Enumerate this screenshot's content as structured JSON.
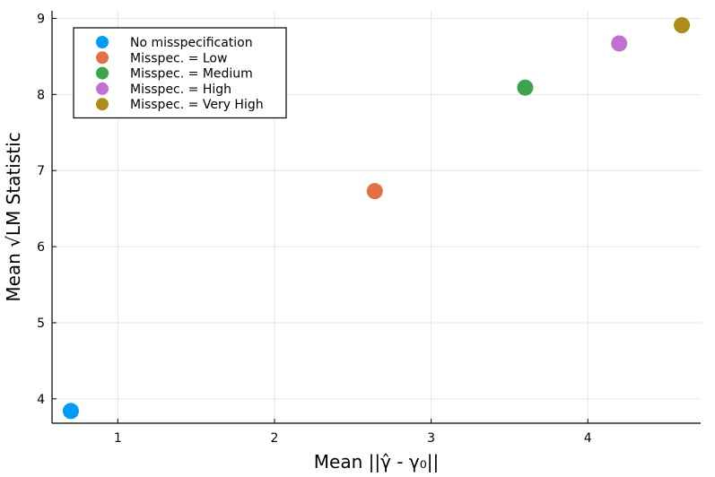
{
  "chart_data": {
    "type": "scatter",
    "title": "",
    "xlabel": "Mean ||γ̂ - γ₀||",
    "ylabel": "Mean √LM Statistic",
    "xlim": [
      0.58,
      4.72
    ],
    "ylim": [
      3.68,
      9.1
    ],
    "xticks": [
      1,
      2,
      3,
      4
    ],
    "yticks": [
      4,
      5,
      6,
      7,
      8,
      9
    ],
    "grid": true,
    "legend_position": "top-left",
    "series": [
      {
        "name": "No misspecification",
        "color": "#009af9",
        "x": [
          0.7
        ],
        "y": [
          3.84
        ]
      },
      {
        "name": "Misspec. = Low",
        "color": "#e26f46",
        "x": [
          2.64
        ],
        "y": [
          6.73
        ]
      },
      {
        "name": "Misspec. = Medium",
        "color": "#3da44d",
        "x": [
          3.6
        ],
        "y": [
          8.09
        ]
      },
      {
        "name": "Misspec. = High",
        "color": "#c271d2",
        "x": [
          4.2
        ],
        "y": [
          8.67
        ]
      },
      {
        "name": "Misspec. = Very High",
        "color": "#ac8d18",
        "x": [
          4.6
        ],
        "y": [
          8.91
        ]
      }
    ]
  }
}
